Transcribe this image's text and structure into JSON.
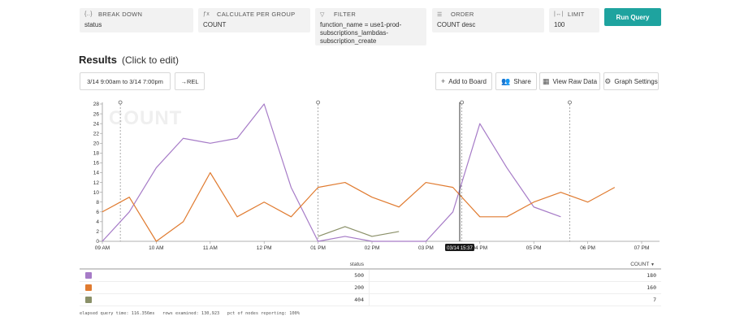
{
  "query": {
    "breakdown": {
      "label": "BREAK DOWN",
      "value": "status"
    },
    "calculate": {
      "label": "CALCULATE PER GROUP",
      "value": "COUNT"
    },
    "filter": {
      "label": "FILTER",
      "value": "function_name = use1-prod-subscriptions_lambdas-subscription_create"
    },
    "order": {
      "label": "ORDER",
      "value": "COUNT desc"
    },
    "limit": {
      "label": "LIMIT",
      "value": "100"
    },
    "run_label": "Run Query"
  },
  "results": {
    "title": "Results",
    "edit_hint": "(Click to edit)",
    "time_range": "3/14 9:00am to 3/14 7:00pm",
    "rel_label": "→REL",
    "actions": {
      "add_to_board": "Add to Board",
      "share": "Share",
      "view_raw": "View Raw Data",
      "graph_settings": "Graph Settings"
    }
  },
  "chart_data": {
    "type": "line",
    "title": "COUNT",
    "x": [
      "09:00",
      "09:30",
      "10:00",
      "10:30",
      "11:00",
      "11:30",
      "12:00",
      "12:30",
      "13:00",
      "13:30",
      "14:00",
      "14:30",
      "15:00",
      "15:30",
      "16:00",
      "16:30",
      "17:00",
      "17:30",
      "18:00",
      "18:30"
    ],
    "x_ticks": [
      "09 AM",
      "10 AM",
      "11 AM",
      "12 PM",
      "01 PM",
      "02 PM",
      "03 PM",
      "04 PM",
      "05 PM",
      "06 PM",
      "07 PM"
    ],
    "ylim": [
      0,
      28
    ],
    "y_ticks": [
      0,
      2,
      4,
      6,
      8,
      10,
      12,
      14,
      16,
      18,
      20,
      22,
      24,
      26,
      28
    ],
    "series": [
      {
        "name": "500",
        "color": "#a67bc7",
        "values": [
          0,
          6,
          15,
          21,
          20,
          21,
          28,
          11,
          0,
          1,
          0,
          0,
          0,
          6,
          24,
          15,
          7,
          5,
          null,
          null
        ]
      },
      {
        "name": "200",
        "color": "#e07b30",
        "values": [
          6,
          9,
          0,
          4,
          14,
          5,
          8,
          5,
          11,
          12,
          9,
          7,
          12,
          11,
          5,
          5,
          8,
          10,
          8,
          11
        ]
      },
      {
        "name": "404",
        "color": "#8a9068",
        "values": [
          null,
          null,
          null,
          null,
          null,
          null,
          null,
          null,
          1,
          3,
          1,
          2,
          null,
          null,
          null,
          null,
          null,
          null,
          null,
          null
        ]
      }
    ],
    "markers_x": [
      "09:20",
      "13:00",
      "15:40",
      "17:40"
    ],
    "cursor_label": "03/14 15:37",
    "grid": false
  },
  "table": {
    "col_status": "status",
    "col_count": "COUNT",
    "rows": [
      {
        "status": "500",
        "count": "180",
        "color": "#a67bc7"
      },
      {
        "status": "200",
        "count": "160",
        "color": "#e07b30"
      },
      {
        "status": "404",
        "count": "7",
        "color": "#8a9068"
      }
    ]
  },
  "footer": "elapsed query time: 116.356ms   rows examined: 130,923   pct of nodes reporting: 100%"
}
